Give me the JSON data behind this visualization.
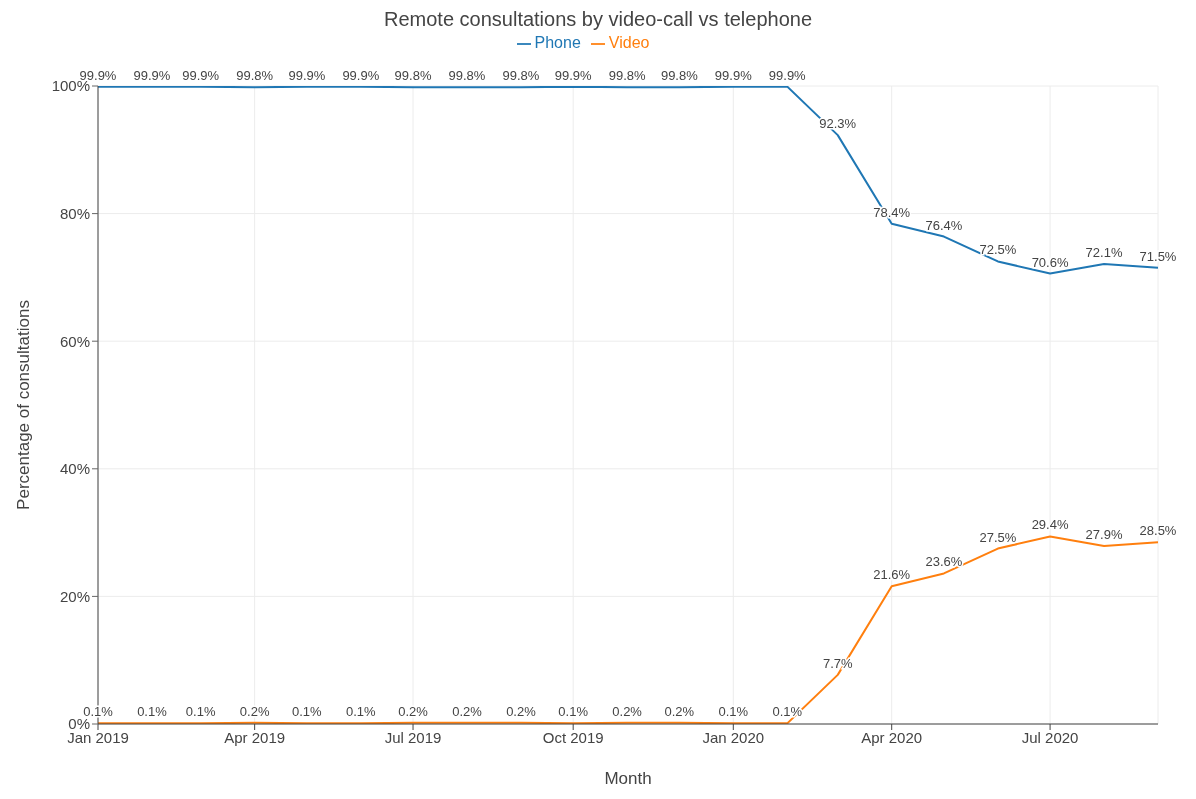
{
  "chart_data": {
    "type": "line",
    "title": "Remote consultations by video-call vs telephone",
    "xlabel": "Month",
    "ylabel": "Percentage of consultations",
    "x": [
      "2019-01",
      "2019-02",
      "2019-03",
      "2019-04",
      "2019-05",
      "2019-06",
      "2019-07",
      "2019-08",
      "2019-09",
      "2019-10",
      "2019-11",
      "2019-12",
      "2020-01",
      "2020-02",
      "2020-03",
      "2020-04",
      "2020-05",
      "2020-06",
      "2020-07",
      "2020-08",
      "2020-09"
    ],
    "series": [
      {
        "name": "Phone",
        "color": "#1f77b4",
        "values": [
          99.9,
          99.9,
          99.9,
          99.8,
          99.9,
          99.9,
          99.8,
          99.8,
          99.8,
          99.9,
          99.8,
          99.8,
          99.9,
          99.9,
          92.3,
          78.4,
          76.4,
          72.5,
          70.6,
          72.1,
          71.5
        ],
        "value_labels": [
          "99.9%",
          "99.9%",
          "99.9%",
          "99.8%",
          "99.9%",
          "99.9%",
          "99.8%",
          "99.8%",
          "99.8%",
          "99.9%",
          "99.8%",
          "99.8%",
          "99.9%",
          "99.9%",
          "92.3%",
          "78.4%",
          "76.4%",
          "72.5%",
          "70.6%",
          "72.1%",
          "71.5%"
        ]
      },
      {
        "name": "Video",
        "color": "#ff7f0e",
        "values": [
          0.1,
          0.1,
          0.1,
          0.2,
          0.1,
          0.1,
          0.2,
          0.2,
          0.2,
          0.1,
          0.2,
          0.2,
          0.1,
          0.1,
          7.7,
          21.6,
          23.6,
          27.5,
          29.4,
          27.9,
          28.5
        ],
        "value_labels": [
          "0.1%",
          "0.1%",
          "0.1%",
          "0.2%",
          "0.1%",
          "0.1%",
          "0.2%",
          "0.2%",
          "0.2%",
          "0.1%",
          "0.2%",
          "0.2%",
          "0.1%",
          "0.1%",
          "7.7%",
          "21.6%",
          "23.6%",
          "27.5%",
          "29.4%",
          "27.9%",
          "28.5%"
        ]
      }
    ],
    "xlim": [
      "2019-01",
      "2020-09"
    ],
    "xticks": [
      {
        "value": "2019-01",
        "label": "Jan 2019"
      },
      {
        "value": "2019-04",
        "label": "Apr 2019"
      },
      {
        "value": "2019-07",
        "label": "Jul 2019"
      },
      {
        "value": "2019-10",
        "label": "Oct 2019"
      },
      {
        "value": "2020-01",
        "label": "Jan 2020"
      },
      {
        "value": "2020-04",
        "label": "Apr 2020"
      },
      {
        "value": "2020-07",
        "label": "Jul 2020"
      }
    ],
    "ylim": [
      0,
      100
    ],
    "yticks": [
      {
        "value": 0,
        "label": "0%"
      },
      {
        "value": 20,
        "label": "20%"
      },
      {
        "value": 40,
        "label": "40%"
      },
      {
        "value": 60,
        "label": "60%"
      },
      {
        "value": 80,
        "label": "80%"
      },
      {
        "value": 100,
        "label": "100%"
      }
    ],
    "grid": true,
    "legend": "top",
    "marker": "none",
    "line_style": "solid"
  }
}
